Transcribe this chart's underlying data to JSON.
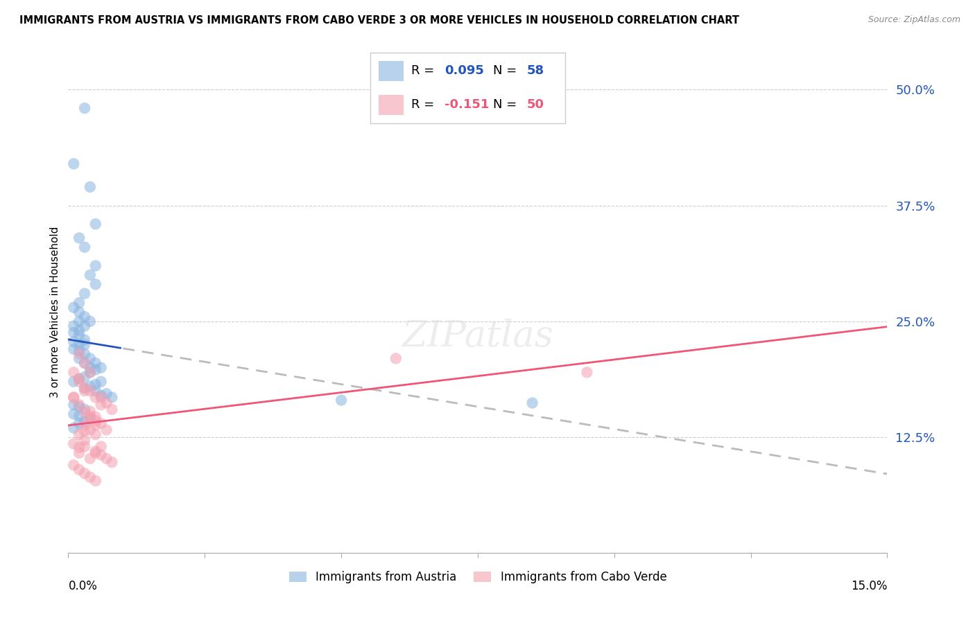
{
  "title": "IMMIGRANTS FROM AUSTRIA VS IMMIGRANTS FROM CABO VERDE 3 OR MORE VEHICLES IN HOUSEHOLD CORRELATION CHART",
  "source": "Source: ZipAtlas.com",
  "ylabel": "3 or more Vehicles in Household",
  "right_ytick_vals": [
    0.5,
    0.375,
    0.25,
    0.125
  ],
  "right_ytick_labels": [
    "50.0%",
    "37.5%",
    "25.0%",
    "12.5%"
  ],
  "xmin": 0.0,
  "xmax": 0.15,
  "ymin": 0.0,
  "ymax": 0.52,
  "austria_color": "#89B4E0",
  "caboverde_color": "#F4A0B0",
  "austria_line_color": "#2255BB",
  "caboverde_line_color": "#EE5577",
  "dashed_color": "#BBBBBB",
  "austria_points_x": [
    0.003,
    0.001,
    0.004,
    0.005,
    0.002,
    0.003,
    0.004,
    0.005,
    0.003,
    0.002,
    0.001,
    0.002,
    0.003,
    0.004,
    0.002,
    0.001,
    0.003,
    0.002,
    0.001,
    0.002,
    0.003,
    0.001,
    0.002,
    0.003,
    0.001,
    0.002,
    0.003,
    0.002,
    0.004,
    0.003,
    0.005,
    0.004,
    0.006,
    0.005,
    0.004,
    0.003,
    0.002,
    0.001,
    0.006,
    0.005,
    0.004,
    0.003,
    0.005,
    0.007,
    0.006,
    0.008,
    0.05,
    0.085,
    0.001,
    0.002,
    0.003,
    0.001,
    0.002,
    0.004,
    0.003,
    0.002,
    0.001,
    0.005
  ],
  "austria_points_y": [
    0.48,
    0.42,
    0.395,
    0.355,
    0.34,
    0.33,
    0.3,
    0.29,
    0.28,
    0.27,
    0.265,
    0.26,
    0.255,
    0.25,
    0.25,
    0.245,
    0.245,
    0.24,
    0.238,
    0.235,
    0.23,
    0.228,
    0.225,
    0.225,
    0.22,
    0.218,
    0.215,
    0.21,
    0.21,
    0.205,
    0.205,
    0.2,
    0.2,
    0.198,
    0.195,
    0.19,
    0.188,
    0.185,
    0.185,
    0.182,
    0.18,
    0.178,
    0.175,
    0.172,
    0.17,
    0.168,
    0.165,
    0.162,
    0.16,
    0.158,
    0.155,
    0.15,
    0.148,
    0.145,
    0.142,
    0.14,
    0.135,
    0.31
  ],
  "caboverde_points_x": [
    0.001,
    0.002,
    0.003,
    0.001,
    0.002,
    0.003,
    0.004,
    0.002,
    0.003,
    0.001,
    0.002,
    0.003,
    0.004,
    0.005,
    0.003,
    0.004,
    0.005,
    0.006,
    0.004,
    0.005,
    0.006,
    0.007,
    0.005,
    0.006,
    0.007,
    0.008,
    0.004,
    0.005,
    0.003,
    0.004,
    0.002,
    0.003,
    0.001,
    0.002,
    0.005,
    0.006,
    0.007,
    0.008,
    0.06,
    0.095,
    0.001,
    0.002,
    0.003,
    0.004,
    0.005,
    0.003,
    0.002,
    0.004,
    0.006,
    0.005
  ],
  "caboverde_points_y": [
    0.195,
    0.185,
    0.175,
    0.168,
    0.215,
    0.205,
    0.195,
    0.188,
    0.178,
    0.168,
    0.16,
    0.152,
    0.145,
    0.138,
    0.132,
    0.175,
    0.168,
    0.16,
    0.153,
    0.147,
    0.14,
    0.133,
    0.128,
    0.168,
    0.162,
    0.155,
    0.148,
    0.143,
    0.138,
    0.133,
    0.128,
    0.122,
    0.118,
    0.114,
    0.11,
    0.106,
    0.102,
    0.098,
    0.21,
    0.195,
    0.095,
    0.09,
    0.086,
    0.082,
    0.078,
    0.115,
    0.108,
    0.102,
    0.115,
    0.108
  ]
}
